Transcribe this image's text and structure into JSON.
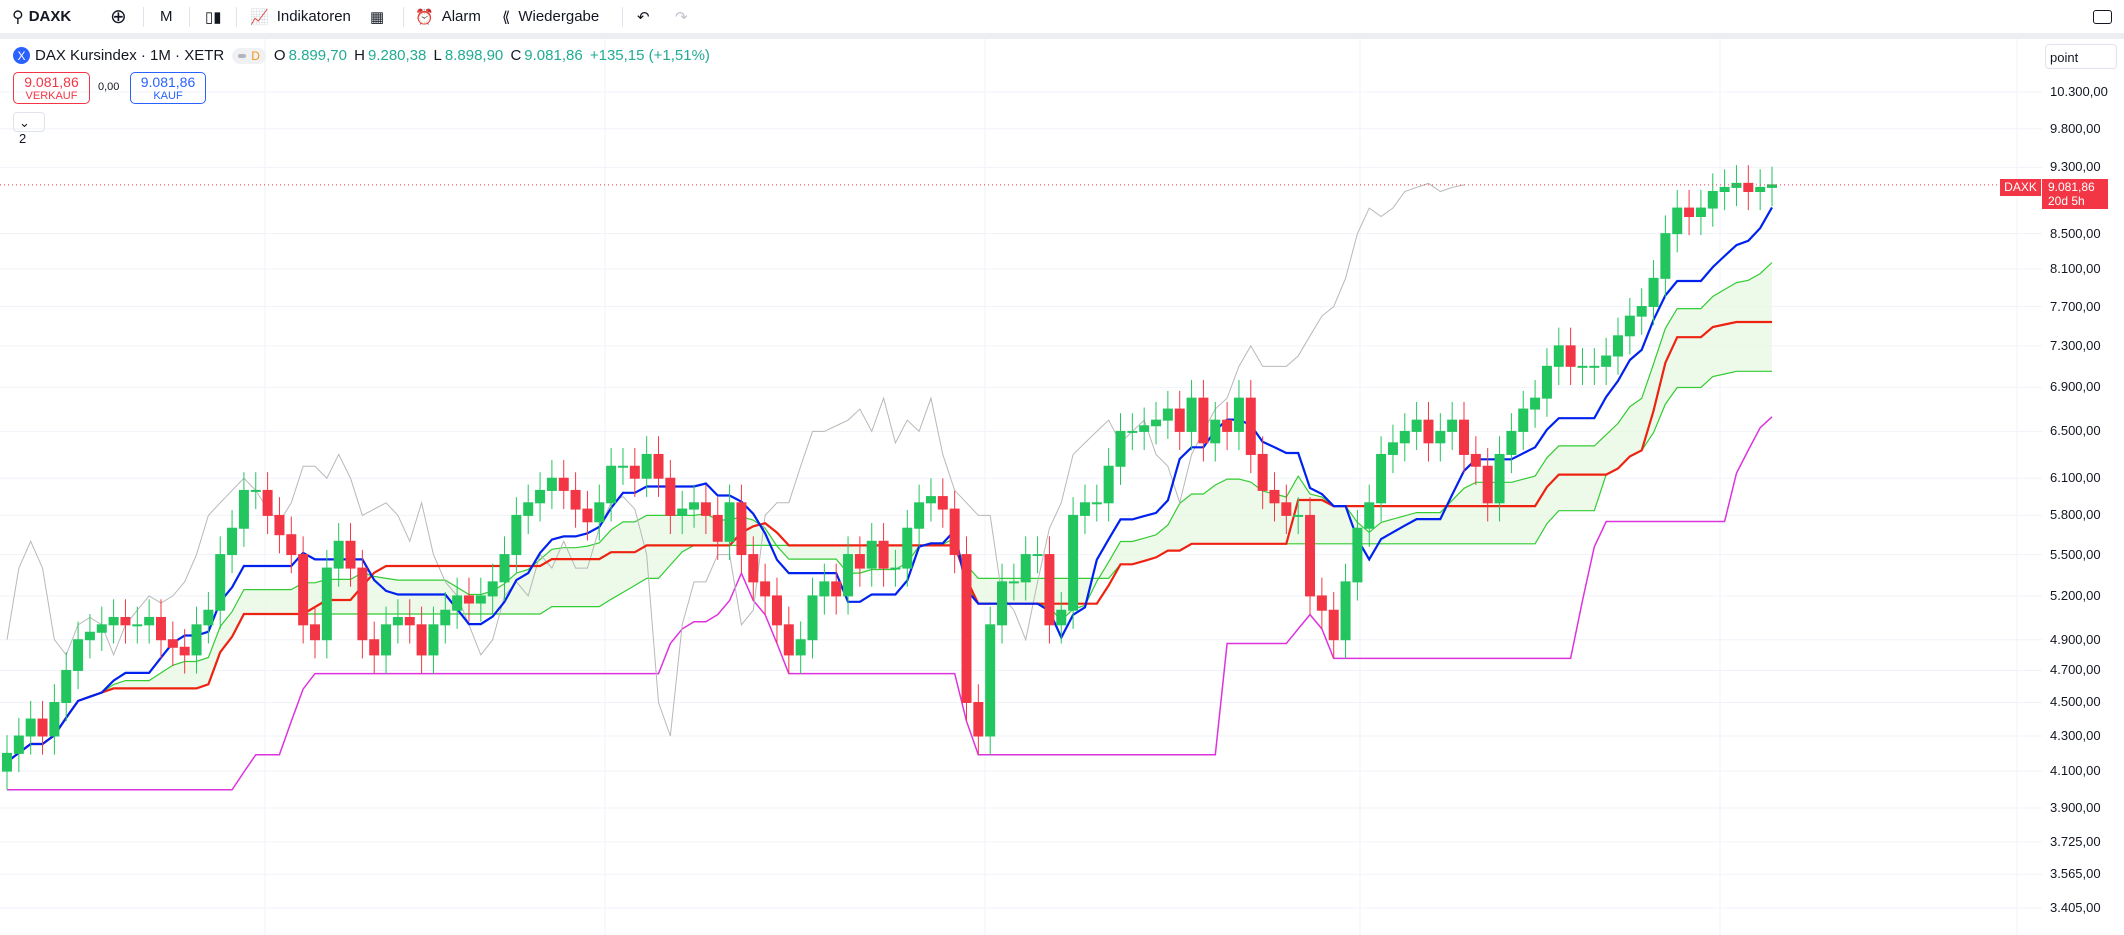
{
  "toolbar": {
    "symbol": "DAXK",
    "interval": "M",
    "indicators": "Indikatoren",
    "alarm": "Alarm",
    "replay": "Wiedergabe"
  },
  "legend": {
    "title": "DAX Kursindex · 1M · XETR",
    "badge": "D",
    "o_label": "O",
    "o": "8.899,70",
    "h_label": "H",
    "h": "9.280,38",
    "l_label": "L",
    "l": "8.898,90",
    "c_label": "C",
    "c": "9.081,86",
    "change": "+135,15 (+1,51%)"
  },
  "trade": {
    "sell_price": "9.081,86",
    "sell_label": "VERKAUF",
    "spread": "0,00",
    "buy_price": "9.081,86",
    "buy_label": "KAUF"
  },
  "indicator_toggle": "2",
  "scale_mode": "point",
  "price_label": {
    "symbol": "DAXK",
    "price": "9.081,86",
    "countdown": "20d 5h"
  },
  "colors": {
    "up": "#22c55e",
    "down": "#f23645",
    "tenkan": "#0022ee",
    "kijun": "#ee2211",
    "lagging": "#b8b8b8",
    "cloud": "#e8f8e4",
    "span": "#33cc33",
    "lower": "#dd33dd"
  },
  "chart_data": {
    "type": "candlestick",
    "scale": "log",
    "last": 9081.86,
    "y_ticks": [
      "10.300,00",
      "9.800,00",
      "9.300,00",
      "8.500,00",
      "8.100,00",
      "7.700,00",
      "7.300,00",
      "6.900,00",
      "6.500,00",
      "6.100,00",
      "5.800,00",
      "5.500,00",
      "5.200,00",
      "4.900,00",
      "4.700,00",
      "4.500,00",
      "4.300,00",
      "4.100,00",
      "3.900,00",
      "3.725,00",
      "3.565,00",
      "3.405,00"
    ],
    "y_tick_values": [
      10300,
      9800,
      9300,
      8500,
      8100,
      7700,
      7300,
      6900,
      6500,
      6100,
      5800,
      5500,
      5200,
      4900,
      4700,
      4500,
      4300,
      4100,
      3900,
      3725,
      3565,
      3405
    ],
    "close": [
      4200,
      4300,
      4400,
      4300,
      4500,
      4700,
      4900,
      4950,
      5000,
      5050,
      5000,
      5000,
      5050,
      4900,
      4850,
      4800,
      5000,
      5100,
      5500,
      5700,
      6000,
      6000,
      5800,
      5650,
      5500,
      5000,
      4900,
      5400,
      5600,
      5400,
      4900,
      4800,
      5000,
      5050,
      5000,
      4800,
      5000,
      5100,
      5200,
      5150,
      5200,
      5300,
      5500,
      5800,
      5900,
      6000,
      6100,
      6000,
      5850,
      5750,
      5900,
      6200,
      6200,
      6100,
      6300,
      6100,
      5800,
      5850,
      5900,
      5800,
      5600,
      5900,
      5500,
      5300,
      5200,
      5000,
      4800,
      4900,
      5200,
      5300,
      5200,
      5500,
      5400,
      5600,
      5400,
      5400,
      5700,
      5900,
      5950,
      5850,
      5500,
      4500,
      4300,
      5000,
      5300,
      5300,
      5500,
      5500,
      5000,
      5100,
      5800,
      5900,
      5900,
      6200,
      6500,
      6500,
      6550,
      6600,
      6700,
      6500,
      6800,
      6400,
      6600,
      6500,
      6800,
      6300,
      6000,
      5900,
      5800,
      5800,
      5200,
      5100,
      4900,
      5300,
      5700,
      5900,
      6300,
      6400,
      6500,
      6600,
      6400,
      6500,
      6600,
      6300,
      6200,
      5900,
      6300,
      6500,
      6700,
      6800,
      7100,
      7300,
      7100,
      7100,
      7100,
      7200,
      7400,
      7600,
      7700,
      8000,
      8500,
      8800,
      8700,
      8800,
      9000,
      9050,
      9100,
      9000,
      9050,
      9081.86
    ]
  }
}
